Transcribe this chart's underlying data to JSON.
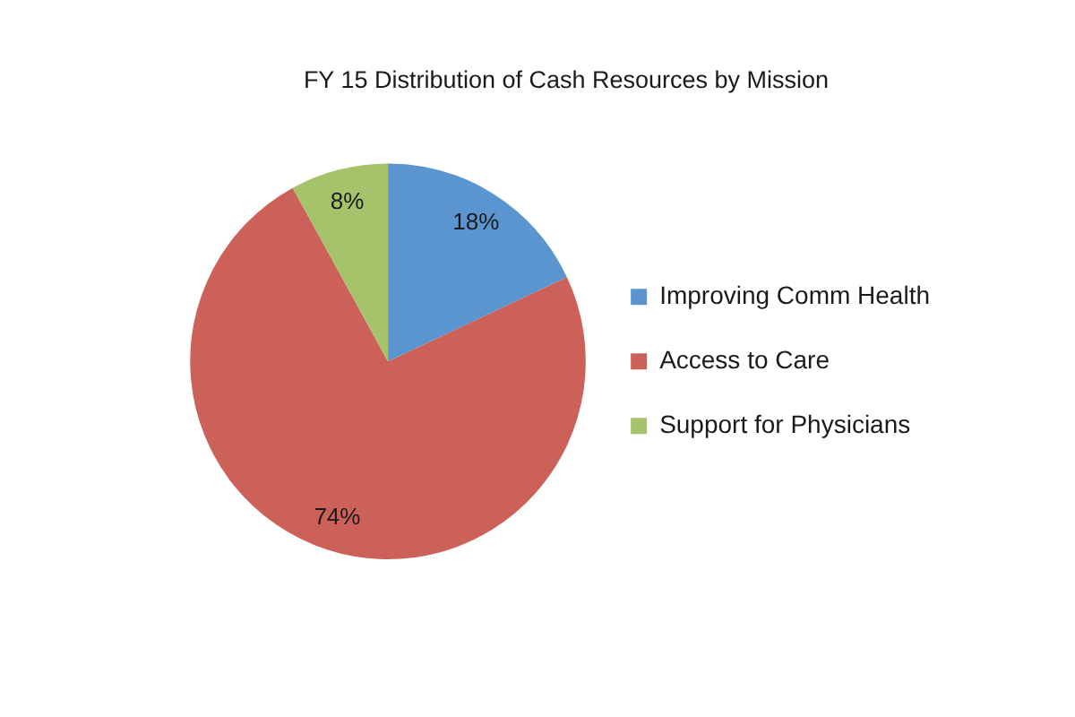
{
  "chart_data": {
    "type": "pie",
    "title": "FY 15 Distribution of Cash Resources by Mission",
    "categories": [
      "Improving Comm Health",
      "Access to Care",
      "Support for Physicians"
    ],
    "values": [
      18,
      74,
      8
    ],
    "colors": [
      "#5b95d0",
      "#cc6159",
      "#a5c36a"
    ],
    "value_labels": [
      "18%",
      "74%",
      "8%"
    ],
    "legend": "right"
  }
}
